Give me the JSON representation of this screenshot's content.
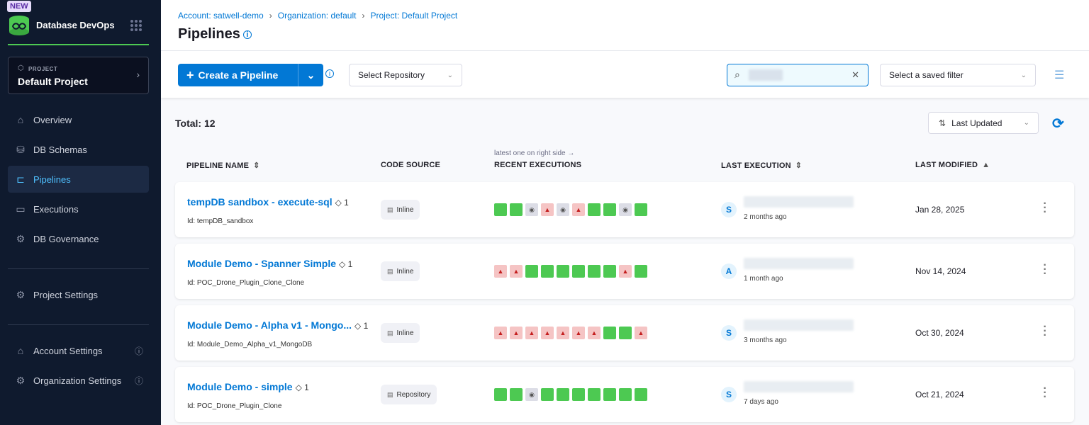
{
  "sidebar": {
    "badge": "NEW",
    "brand": "Database DevOps",
    "project": {
      "label": "PROJECT",
      "name": "Default Project"
    },
    "items": [
      {
        "label": "Overview",
        "icon": "home-icon"
      },
      {
        "label": "DB Schemas",
        "icon": "database-icon"
      },
      {
        "label": "Pipelines",
        "icon": "pipeline-icon",
        "active": true
      },
      {
        "label": "Executions",
        "icon": "executions-icon"
      },
      {
        "label": "DB Governance",
        "icon": "governance-icon"
      },
      {
        "label": "Project Settings",
        "icon": "gear-icon"
      },
      {
        "label": "Account Settings",
        "icon": "account-icon"
      },
      {
        "label": "Organization Settings",
        "icon": "organization-icon"
      }
    ],
    "accent": "#4dc952"
  },
  "header": {
    "breadcrumb": [
      "Account: satwell-demo",
      "Organization: default",
      "Project: Default Project"
    ],
    "title": "Pipelines"
  },
  "toolbar": {
    "create_label": "Create a Pipeline",
    "repo_select": "Select Repository",
    "saved_filter": "Select a saved filter"
  },
  "list": {
    "total": "Total: 12",
    "sort": "Last Updated",
    "hint": "latest one on right side →",
    "columns": [
      "PIPELINE NAME",
      "CODE SOURCE",
      "RECENT EXECUTIONS",
      "LAST EXECUTION",
      "LAST MODIFIED"
    ],
    "rows": [
      {
        "name": "tempDB sandbox - execute-sql",
        "tags": "1",
        "id": "Id: tempDB_sandbox",
        "source": "Inline",
        "executions": [
          "success",
          "success",
          "skipped",
          "failed",
          "skipped",
          "failed",
          "success",
          "success",
          "skipped",
          "success"
        ],
        "avatar": "S",
        "ago": "2 months ago",
        "modified": "Jan 28, 2025"
      },
      {
        "name": "Module Demo - Spanner Simple",
        "tags": "1",
        "id": "Id: POC_Drone_Plugin_Clone_Clone",
        "source": "Inline",
        "executions": [
          "failed",
          "failed",
          "success",
          "success",
          "success",
          "success",
          "success",
          "success",
          "failed",
          "success"
        ],
        "avatar": "A",
        "ago": "1 month ago",
        "modified": "Nov 14, 2024"
      },
      {
        "name": "Module Demo - Alpha v1 - Mongo...",
        "tags": "1",
        "id": "Id: Module_Demo_Alpha_v1_MongoDB",
        "source": "Inline",
        "executions": [
          "failed",
          "failed",
          "failed",
          "failed",
          "failed",
          "failed",
          "failed",
          "success",
          "success",
          "failed"
        ],
        "avatar": "S",
        "ago": "3 months ago",
        "modified": "Oct 30, 2024"
      },
      {
        "name": "Module Demo - simple",
        "tags": "1",
        "id": "Id: POC_Drone_Plugin_Clone",
        "source": "Repository",
        "executions": [
          "success",
          "success",
          "skipped",
          "success",
          "success",
          "success",
          "success",
          "success",
          "success",
          "success"
        ],
        "avatar": "S",
        "ago": "7 days ago",
        "modified": "Oct 21, 2024"
      }
    ]
  },
  "status_colors": {
    "success": "#4dc952",
    "failed": "#f5c4c4",
    "skipped": "#dcdde6",
    "primary": "#0278d5"
  }
}
